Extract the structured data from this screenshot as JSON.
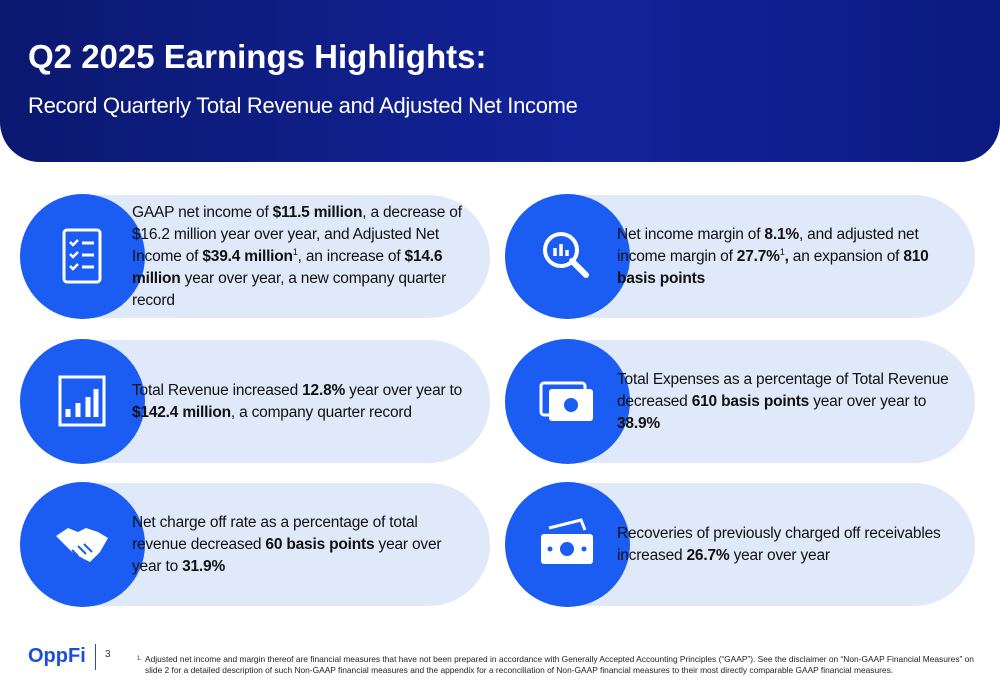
{
  "header": {
    "title": "Q2 2025 Earnings Highlights:",
    "subtitle": "Record Quarterly Total Revenue and Adjusted Net Income"
  },
  "cards": [
    {
      "segments": [
        {
          "text": "GAAP net income of "
        },
        {
          "text": "$11.5 million",
          "bold": true
        },
        {
          "text": ", a decrease of $16.2 million year over year, and Adjusted Net Income of "
        },
        {
          "text": "$39.4 million",
          "bold": true
        },
        {
          "text": "1",
          "sup": true
        },
        {
          "text": ", an increase of "
        },
        {
          "text": "$14.6 million",
          "bold": true
        },
        {
          "text": " year over year, a new company quarter record"
        }
      ]
    },
    {
      "segments": [
        {
          "text": "Net income margin of "
        },
        {
          "text": "8.1%",
          "bold": true
        },
        {
          "text": ", and adjusted net income margin of "
        },
        {
          "text": "27.7%",
          "bold": true
        },
        {
          "text": "1",
          "sup": true
        },
        {
          "text": ",",
          "bold": true
        },
        {
          "text": " an expansion of "
        },
        {
          "text": "810 basis points",
          "bold": true
        }
      ]
    },
    {
      "segments": [
        {
          "text": "Total Revenue increased "
        },
        {
          "text": "12.8%",
          "bold": true
        },
        {
          "text": " year over year to "
        },
        {
          "text": "$142.4 million",
          "bold": true
        },
        {
          "text": ", a company quarter record"
        }
      ]
    },
    {
      "segments": [
        {
          "text": "Total Expenses as a percentage of Total Revenue decreased "
        },
        {
          "text": "610 basis points",
          "bold": true
        },
        {
          "text": " year over year to "
        },
        {
          "text": "38.9%",
          "bold": true
        }
      ]
    },
    {
      "segments": [
        {
          "text": "Net charge off rate as a percentage of total revenue decreased "
        },
        {
          "text": "60 basis points",
          "bold": true
        },
        {
          "text": " year over year to "
        },
        {
          "text": "31.9%",
          "bold": true
        }
      ]
    },
    {
      "segments": [
        {
          "text": "Recoveries of previously charged off receivables increased "
        },
        {
          "text": "26.7%",
          "bold": true
        },
        {
          "text": " year over year"
        }
      ]
    }
  ],
  "footer": {
    "logo": "OppFi",
    "page": "3",
    "note_marker": "1.",
    "note": "Adjusted net income and margin thereof are financial measures that have not been prepared in accordance with Generally Accepted Accounting Principles (“GAAP”). See the disclaimer on “Non-GAAP Financial Measures” on slide 2 for a detailed description of such Non-GAAP financial measures and the appendix for a reconciliation of Non-GAAP financial measures to their most directly comparable GAAP financial measures."
  }
}
